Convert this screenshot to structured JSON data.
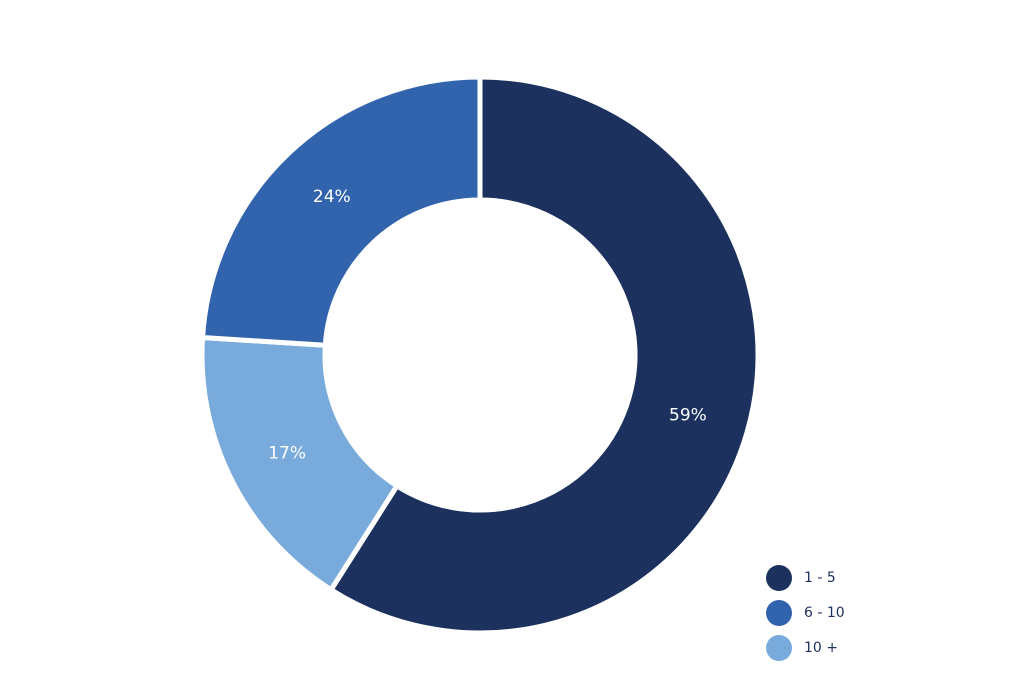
{
  "chart_data": {
    "type": "donut",
    "categories": [
      "1 - 5",
      "6 - 10",
      "10 +"
    ],
    "values": [
      59,
      24,
      17
    ],
    "value_labels": [
      "59%",
      "24%",
      "17%"
    ],
    "colors": [
      "#1c315e",
      "#3264ae",
      "#78aadb"
    ],
    "legend": "bottom-right"
  }
}
